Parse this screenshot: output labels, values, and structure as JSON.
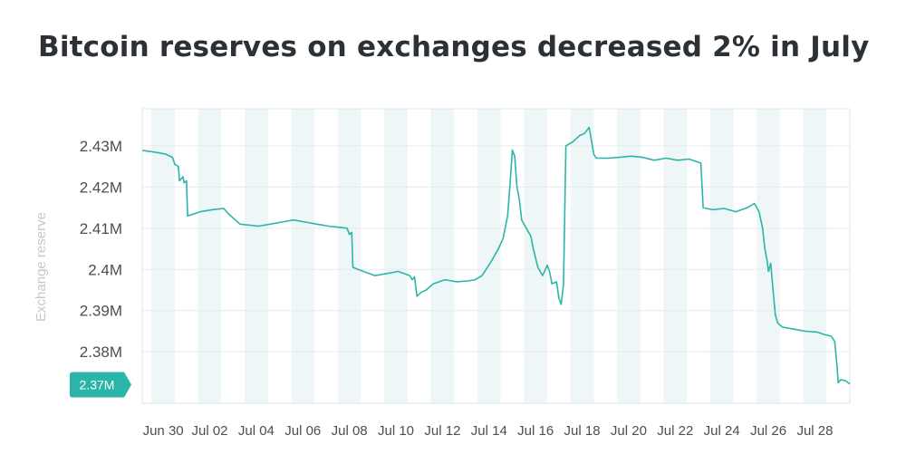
{
  "page": {
    "title": "Bitcoin reserves on exchanges decreased 2% in July"
  },
  "chart_data": {
    "type": "line",
    "title": "Bitcoin reserves on exchanges decreased 2% in July",
    "ylabel": "Exchange reserve",
    "xlabel": "",
    "x_tick_labels": [
      "Jun 30",
      "Jul 02",
      "Jul 04",
      "Jul 06",
      "Jul 08",
      "Jul 10",
      "Jul 12",
      "Jul 14",
      "Jul 16",
      "Jul 18",
      "Jul 20",
      "Jul 22",
      "Jul 24",
      "Jul 26",
      "Jul 28"
    ],
    "y_tick_labels": [
      "2.43M",
      "2.42M",
      "2.41M",
      "2.4M",
      "2.39M",
      "2.38M"
    ],
    "y_ticks": [
      2.43,
      2.42,
      2.41,
      2.4,
      2.39,
      2.38
    ],
    "ylim": [
      2.3675,
      2.439
    ],
    "xlim": [
      0,
      30.4
    ],
    "grid": true,
    "line_color": "#2bb5a8",
    "band_color": "#eef6f8",
    "current_value_label": "2.37M",
    "current_value": 2.372,
    "series": [
      {
        "name": "",
        "points": [
          [
            0.0,
            2.4289
          ],
          [
            0.5,
            2.4285
          ],
          [
            1.0,
            2.428
          ],
          [
            1.3,
            2.4272
          ],
          [
            1.4,
            2.4255
          ],
          [
            1.55,
            2.425
          ],
          [
            1.6,
            2.4215
          ],
          [
            1.75,
            2.4225
          ],
          [
            1.8,
            2.421
          ],
          [
            1.9,
            2.4215
          ],
          [
            1.95,
            2.413
          ],
          [
            2.5,
            2.414
          ],
          [
            3.0,
            2.4145
          ],
          [
            3.5,
            2.4148
          ],
          [
            3.7,
            2.4135
          ],
          [
            4.0,
            2.412
          ],
          [
            4.2,
            2.411
          ],
          [
            5.0,
            2.4105
          ],
          [
            5.5,
            2.411
          ],
          [
            6.0,
            2.4115
          ],
          [
            6.5,
            2.412
          ],
          [
            7.0,
            2.4115
          ],
          [
            7.5,
            2.411
          ],
          [
            8.0,
            2.4105
          ],
          [
            8.5,
            2.4102
          ],
          [
            8.8,
            2.41
          ],
          [
            8.9,
            2.4085
          ],
          [
            9.0,
            2.409
          ],
          [
            9.05,
            2.4005
          ],
          [
            9.5,
            2.3995
          ],
          [
            10.0,
            2.3985
          ],
          [
            10.5,
            2.399
          ],
          [
            11.0,
            2.3995
          ],
          [
            11.5,
            2.3985
          ],
          [
            11.6,
            2.3975
          ],
          [
            11.7,
            2.3982
          ],
          [
            11.8,
            2.3935
          ],
          [
            12.0,
            2.3945
          ],
          [
            12.2,
            2.395
          ],
          [
            12.5,
            2.3965
          ],
          [
            13.0,
            2.3975
          ],
          [
            13.5,
            2.397
          ],
          [
            14.0,
            2.3972
          ],
          [
            14.3,
            2.3975
          ],
          [
            14.6,
            2.3985
          ],
          [
            15.0,
            2.402
          ],
          [
            15.3,
            2.405
          ],
          [
            15.5,
            2.4075
          ],
          [
            15.7,
            2.413
          ],
          [
            15.8,
            2.4205
          ],
          [
            15.9,
            2.429
          ],
          [
            16.0,
            2.4275
          ],
          [
            16.1,
            2.42
          ],
          [
            16.2,
            2.417
          ],
          [
            16.3,
            2.412
          ],
          [
            16.5,
            2.41
          ],
          [
            16.7,
            2.408
          ],
          [
            16.8,
            2.405
          ],
          [
            17.0,
            2.4005
          ],
          [
            17.2,
            2.3985
          ],
          [
            17.4,
            2.401
          ],
          [
            17.5,
            2.3995
          ],
          [
            17.6,
            2.3965
          ],
          [
            17.8,
            2.397
          ],
          [
            17.9,
            2.393
          ],
          [
            18.0,
            2.3915
          ],
          [
            18.1,
            2.3965
          ],
          [
            18.2,
            2.43
          ],
          [
            18.5,
            2.431
          ],
          [
            18.8,
            2.4325
          ],
          [
            19.0,
            2.433
          ],
          [
            19.2,
            2.4345
          ],
          [
            19.4,
            2.428
          ],
          [
            19.5,
            2.427
          ],
          [
            20.0,
            2.427
          ],
          [
            20.5,
            2.4272
          ],
          [
            21.0,
            2.4275
          ],
          [
            21.5,
            2.4272
          ],
          [
            22.0,
            2.4265
          ],
          [
            22.5,
            2.427
          ],
          [
            23.0,
            2.4265
          ],
          [
            23.5,
            2.4268
          ],
          [
            24.0,
            2.4258
          ],
          [
            24.1,
            2.415
          ],
          [
            24.5,
            2.4145
          ],
          [
            25.0,
            2.4148
          ],
          [
            25.5,
            2.414
          ],
          [
            26.0,
            2.415
          ],
          [
            26.3,
            2.416
          ],
          [
            26.5,
            2.414
          ],
          [
            26.65,
            2.41
          ],
          [
            26.75,
            2.405
          ],
          [
            26.85,
            2.402
          ],
          [
            26.9,
            2.3995
          ],
          [
            27.0,
            2.4015
          ],
          [
            27.1,
            2.395
          ],
          [
            27.2,
            2.389
          ],
          [
            27.3,
            2.387
          ],
          [
            27.5,
            2.386
          ],
          [
            28.0,
            2.3855
          ],
          [
            28.5,
            2.385
          ],
          [
            29.0,
            2.3848
          ],
          [
            29.3,
            2.3842
          ],
          [
            29.6,
            2.3838
          ],
          [
            29.75,
            2.3825
          ],
          [
            29.85,
            2.3765
          ],
          [
            29.9,
            2.3725
          ],
          [
            30.0,
            2.3732
          ],
          [
            30.2,
            2.373
          ],
          [
            30.4,
            2.3722
          ]
        ]
      }
    ]
  }
}
